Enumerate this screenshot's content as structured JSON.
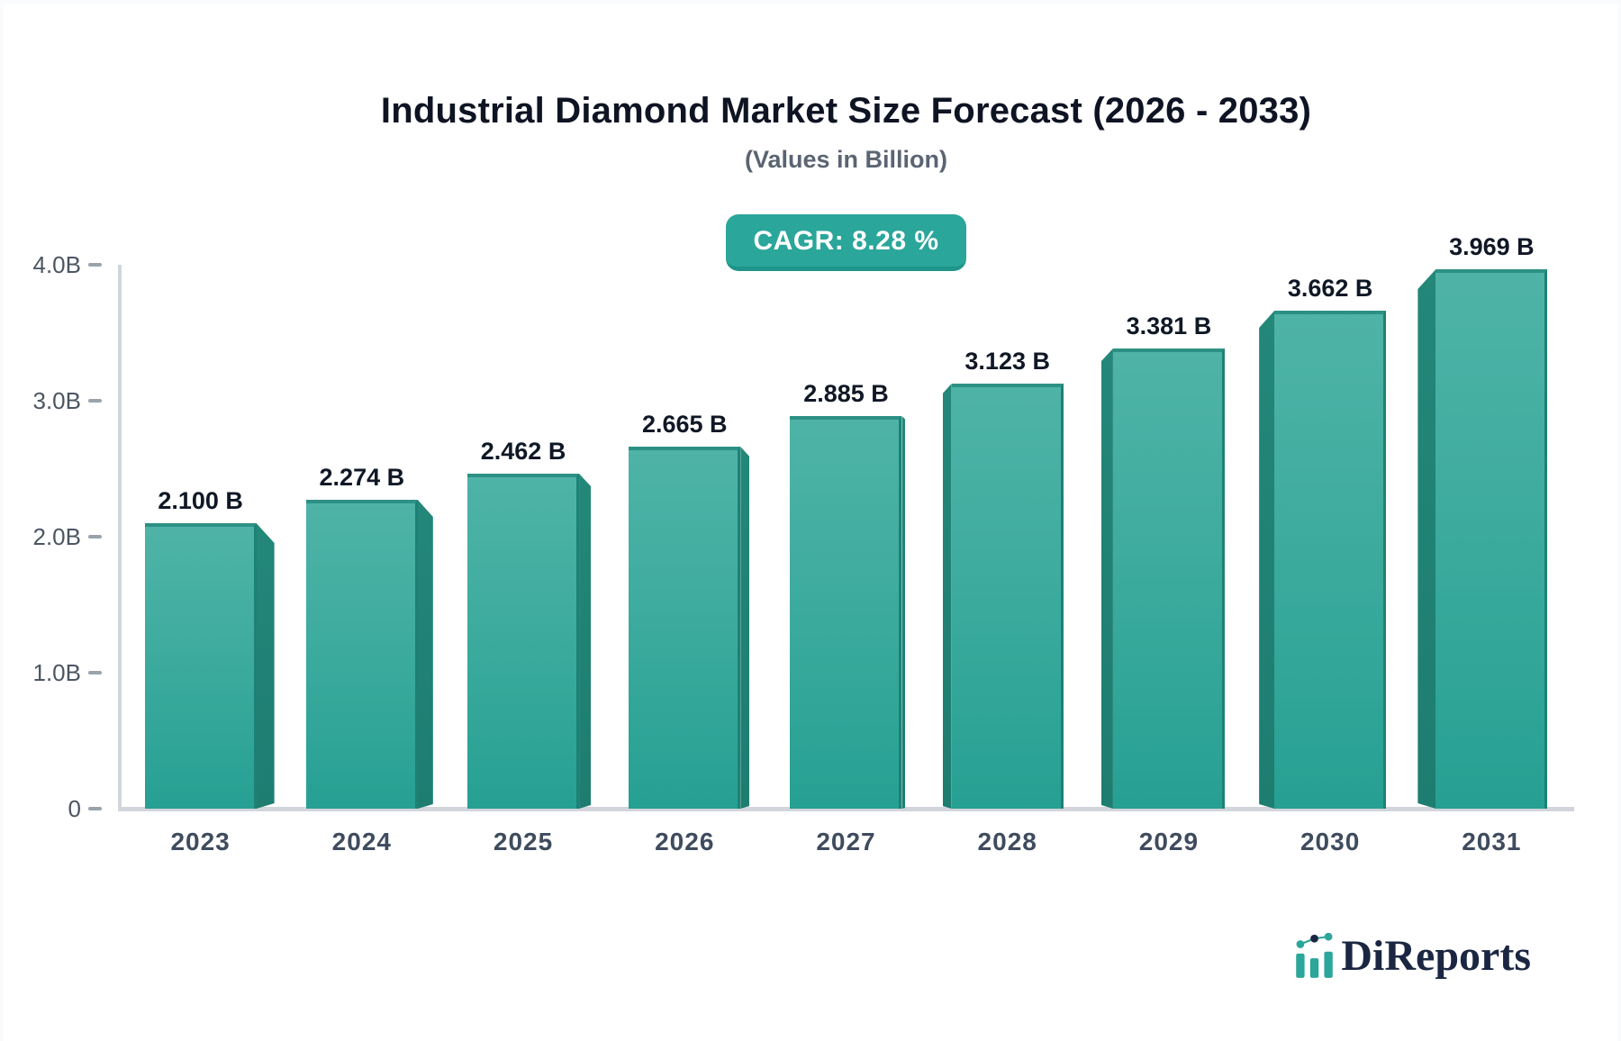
{
  "page": {
    "background": "#fafbfc",
    "card_background": "#ffffff"
  },
  "header": {
    "title": "Industrial Diamond Market Size Forecast (2026 - 2033)",
    "subtitle": "(Values in Billion)"
  },
  "badge": {
    "label": "CAGR: 8.28 %",
    "background": "#2aa69a",
    "text_color": "#ffffff"
  },
  "chart_data": {
    "type": "bar",
    "title": "Industrial Diamond Market Size Forecast (2026 - 2033)",
    "subtitle": "(Values in Billion)",
    "categories": [
      "2023",
      "2024",
      "2025",
      "2026",
      "2027",
      "2028",
      "2029",
      "2030",
      "2031"
    ],
    "values": [
      2.1,
      2.274,
      2.462,
      2.665,
      2.885,
      3.123,
      3.381,
      3.662,
      3.969
    ],
    "bar_labels": [
      "2.100 B",
      "2.274 B",
      "2.462 B",
      "2.665 B",
      "2.885 B",
      "3.123 B",
      "3.381 B",
      "3.662 B",
      "3.969 B"
    ],
    "y_ticks": [
      {
        "value": 4.0,
        "label": "4.0B"
      },
      {
        "value": 3.0,
        "label": "3.0B"
      },
      {
        "value": 2.0,
        "label": "2.0B"
      },
      {
        "value": 1.0,
        "label": "1.0B"
      },
      {
        "value": 0.0,
        "label": "0"
      }
    ],
    "ylim": [
      0,
      4
    ],
    "cagr": "8.28 %",
    "bar_color": "#3cab9e",
    "bar_side_color": "#1f8276",
    "axis_color": "#d2d5db",
    "grid": "off",
    "legend": "none",
    "style": "3d-perspective-bars"
  },
  "footer": {
    "brand": "DiReports",
    "brand_color": "#1b2742",
    "mark_color": "#2aa69a"
  }
}
